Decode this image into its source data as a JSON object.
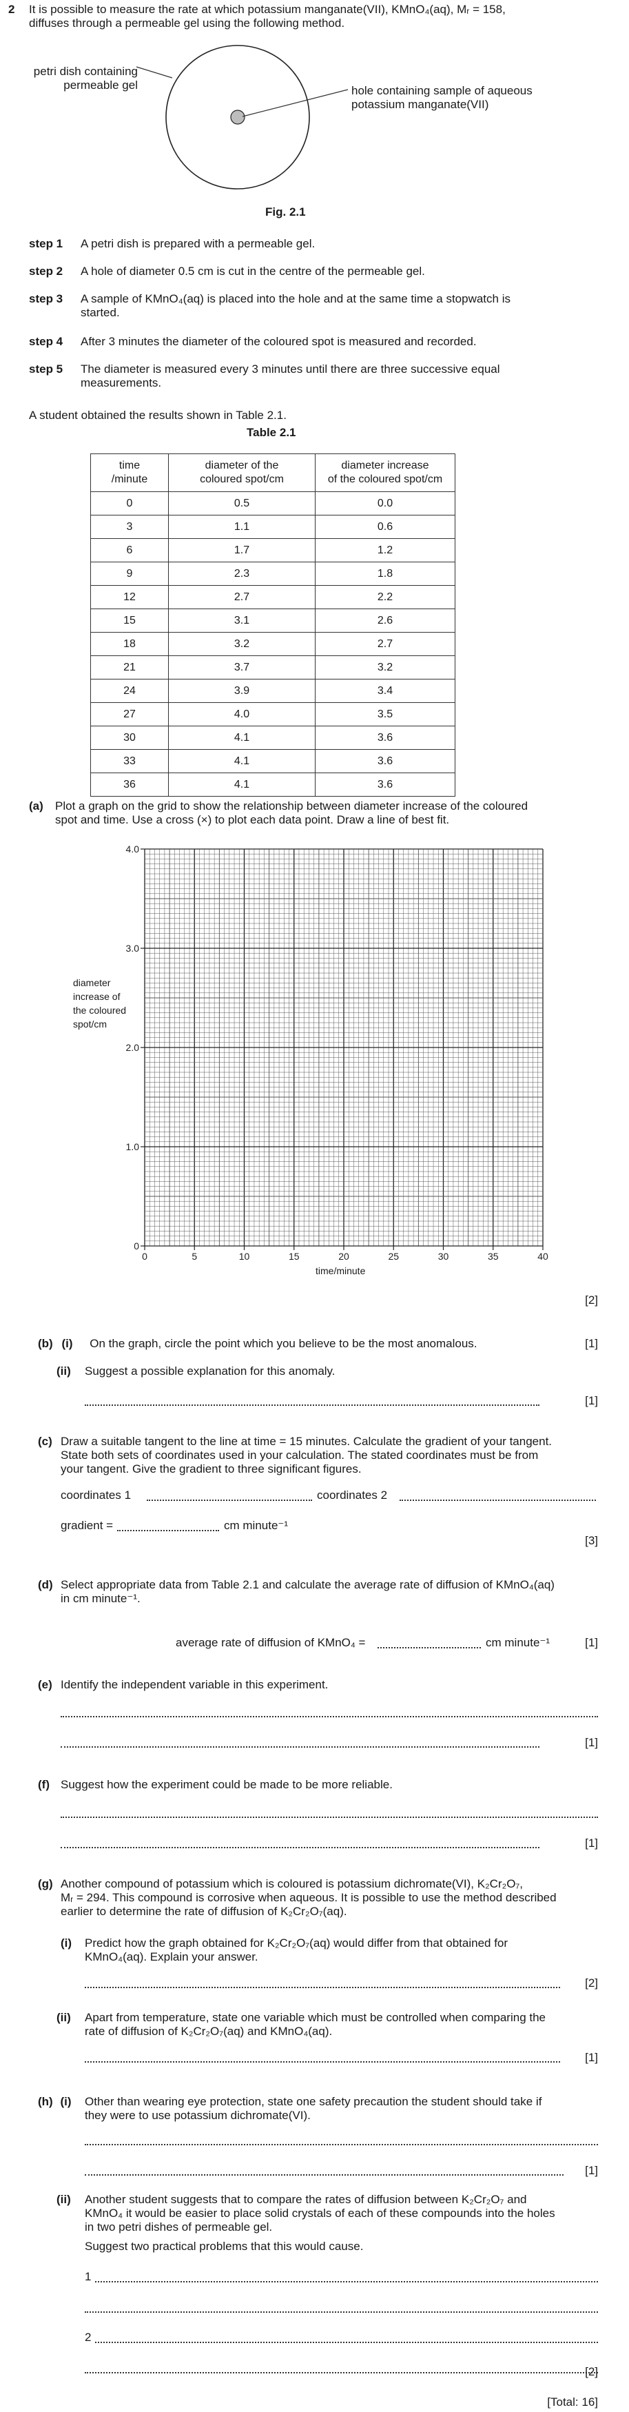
{
  "question_number": "2",
  "intro": [
    "It is possible to measure the rate at which potassium manganate(VII), KMnO₄(aq), Mᵣ = 158,",
    "diffuses through a permeable gel using the following method."
  ],
  "figure": {
    "label_left": [
      "petri dish containing",
      "permeable gel"
    ],
    "label_right": [
      "hole containing sample of aqueous",
      "potassium manganate(VII)"
    ],
    "caption": "Fig. 2.1"
  },
  "steps": [
    {
      "label": "step 1",
      "lines": [
        "A petri dish is prepared with a permeable gel."
      ]
    },
    {
      "label": "step 2",
      "lines": [
        "A hole of diameter 0.5 cm is cut in the centre of the permeable gel."
      ]
    },
    {
      "label": "step 3",
      "lines": [
        "A sample of KMnO₄(aq) is placed into the hole and at the same time a stopwatch is",
        "started."
      ]
    },
    {
      "label": "step 4",
      "lines": [
        "After 3 minutes the diameter of the coloured spot is measured and recorded."
      ]
    },
    {
      "label": "step 5",
      "lines": [
        "The diameter is measured every 3 minutes until there are three successive equal",
        "measurements."
      ]
    }
  ],
  "results_intro": "A student obtained the results shown in Table 2.1.",
  "table": {
    "caption": "Table 2.1",
    "headers": [
      [
        "time",
        "/minute"
      ],
      [
        "diameter of the",
        "coloured spot/cm"
      ],
      [
        "diameter increase",
        "of the coloured spot/cm"
      ]
    ],
    "rows": [
      [
        "0",
        "0.5",
        "0.0"
      ],
      [
        "3",
        "1.1",
        "0.6"
      ],
      [
        "6",
        "1.7",
        "1.2"
      ],
      [
        "9",
        "2.3",
        "1.8"
      ],
      [
        "12",
        "2.7",
        "2.2"
      ],
      [
        "15",
        "3.1",
        "2.6"
      ],
      [
        "18",
        "3.2",
        "2.7"
      ],
      [
        "21",
        "3.7",
        "3.2"
      ],
      [
        "24",
        "3.9",
        "3.4"
      ],
      [
        "27",
        "4.0",
        "3.5"
      ],
      [
        "30",
        "4.1",
        "3.6"
      ],
      [
        "33",
        "4.1",
        "3.6"
      ],
      [
        "36",
        "4.1",
        "3.6"
      ]
    ]
  },
  "part_a": {
    "label": "(a)",
    "lines": [
      "Plot a graph on the grid to show the relationship between diameter increase of the coloured",
      "spot and time. Use a cross (×) to plot each data point. Draw a line of best fit."
    ],
    "marks": "[2]"
  },
  "chart_data": {
    "type": "scatter",
    "xlabel": "time/minute",
    "ylabel": [
      "diameter",
      "increase of",
      "the coloured",
      "spot/cm"
    ],
    "xlim": [
      0,
      40
    ],
    "ylim": [
      0,
      4.0
    ],
    "x_ticks": [
      "0",
      "5",
      "10",
      "15",
      "20",
      "25",
      "30",
      "35",
      "40"
    ],
    "y_ticks": [
      "0",
      "1.0",
      "2.0",
      "3.0",
      "4.0"
    ],
    "grid": true,
    "series": []
  },
  "part_b": {
    "label": "(b)",
    "i_label": "(i)",
    "i_text": "On the graph, circle the point which you believe to be the most anomalous.",
    "i_marks": "[1]",
    "ii_label": "(ii)",
    "ii_text": "Suggest a possible explanation for this anomaly.",
    "ii_marks": "[1]"
  },
  "part_c": {
    "label": "(c)",
    "lines": [
      "Draw a suitable tangent to the line at time = 15 minutes. Calculate the gradient of your tangent.",
      "State both sets of coordinates used in your calculation. The stated coordinates must be from",
      "your tangent. Give the gradient to three significant figures."
    ],
    "coord1": "coordinates 1",
    "coord2": "coordinates 2",
    "gradient_label": "gradient =",
    "gradient_unit": "cm minute⁻¹",
    "marks": "[3]"
  },
  "part_d": {
    "label": "(d)",
    "lines": [
      "Select appropriate data from Table 2.1 and calculate the average rate of diffusion of KMnO₄(aq)",
      "in cm minute⁻¹."
    ],
    "answer_label": "average rate of diffusion of KMnO₄ =",
    "answer_unit": "cm minute⁻¹",
    "marks": "[1]"
  },
  "part_e": {
    "label": "(e)",
    "text": "Identify the independent variable in this experiment.",
    "marks": "[1]"
  },
  "part_f": {
    "label": "(f)",
    "text": "Suggest how the experiment could be made to be more reliable.",
    "marks": "[1]"
  },
  "part_g": {
    "label": "(g)",
    "lines": [
      "Another compound of potassium which is coloured is potassium dichromate(VI), K₂Cr₂O₇,",
      "Mᵣ = 294. This compound is corrosive when aqueous. It is possible to use the method described",
      "earlier to determine the rate of diffusion of K₂Cr₂O₇(aq)."
    ],
    "i_label": "(i)",
    "i_lines": [
      "Predict how the graph obtained for K₂Cr₂O₇(aq) would differ from that obtained for",
      "KMnO₄(aq). Explain your answer."
    ],
    "i_marks": "[2]",
    "ii_label": "(ii)",
    "ii_lines": [
      "Apart from temperature, state one variable which must be controlled when comparing the",
      "rate of diffusion of K₂Cr₂O₇(aq) and KMnO₄(aq)."
    ],
    "ii_marks": "[1]"
  },
  "part_h": {
    "label": "(h)",
    "i_label": "(i)",
    "i_lines": [
      "Other than wearing eye protection, state one safety precaution the student should take if",
      "they were to use potassium dichromate(VI)."
    ],
    "i_marks": "[1]",
    "ii_label": "(ii)",
    "ii_lines": [
      "Another student suggests that to compare the rates of diffusion between K₂Cr₂O₇ and",
      "KMnO₄ it would be easier to place solid crystals of each of these compounds into the holes",
      "in two petri dishes of permeable gel."
    ],
    "ii_prompt": "Suggest two practical problems that this would cause.",
    "num1": "1",
    "num2": "2",
    "ii_marks": "[2]"
  },
  "total": "[Total: 16]"
}
